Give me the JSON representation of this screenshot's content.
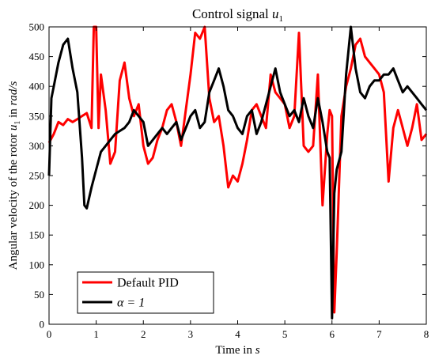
{
  "chart_data": {
    "type": "line",
    "title_main": "Control signal ",
    "title_var": "u",
    "title_sub": "1",
    "xlabel_main": "Time in ",
    "xlabel_unit": "s",
    "ylabel_main": "Angular velocity of the rotor ",
    "ylabel_var": "u",
    "ylabel_sub": "1",
    "ylabel_mid": " in ",
    "ylabel_unit": "rad/s",
    "xlim": [
      0,
      8
    ],
    "ylim": [
      0,
      500
    ],
    "xticks": [
      "0",
      "1",
      "2",
      "3",
      "4",
      "5",
      "6",
      "7",
      "8"
    ],
    "yticks": [
      "0",
      "50",
      "100",
      "150",
      "200",
      "250",
      "300",
      "350",
      "400",
      "450",
      "500"
    ],
    "grid": false,
    "legend_position": "bottom-left",
    "series": [
      {
        "name": "Default PID",
        "color": "#ff0000",
        "x": [
          0.0,
          0.1,
          0.2,
          0.3,
          0.4,
          0.5,
          0.6,
          0.7,
          0.8,
          0.9,
          0.95,
          1.0,
          1.05,
          1.1,
          1.2,
          1.3,
          1.4,
          1.5,
          1.6,
          1.7,
          1.8,
          1.9,
          2.0,
          2.1,
          2.2,
          2.3,
          2.4,
          2.5,
          2.6,
          2.7,
          2.8,
          2.9,
          3.0,
          3.1,
          3.2,
          3.3,
          3.4,
          3.5,
          3.6,
          3.7,
          3.8,
          3.9,
          4.0,
          4.1,
          4.2,
          4.3,
          4.4,
          4.5,
          4.6,
          4.7,
          4.8,
          4.9,
          5.0,
          5.1,
          5.2,
          5.3,
          5.4,
          5.5,
          5.6,
          5.7,
          5.8,
          5.9,
          5.95,
          6.0,
          6.05,
          6.1,
          6.2,
          6.3,
          6.4,
          6.5,
          6.6,
          6.7,
          6.8,
          6.9,
          7.0,
          7.1,
          7.2,
          7.3,
          7.4,
          7.5,
          7.6,
          7.7,
          7.8,
          7.9,
          8.0
        ],
        "y": [
          305,
          320,
          340,
          335,
          345,
          340,
          345,
          350,
          355,
          330,
          500,
          500,
          330,
          420,
          360,
          270,
          290,
          410,
          440,
          380,
          350,
          370,
          300,
          270,
          280,
          310,
          330,
          360,
          370,
          340,
          300,
          360,
          420,
          490,
          480,
          500,
          380,
          340,
          350,
          300,
          230,
          250,
          240,
          270,
          310,
          360,
          370,
          350,
          330,
          420,
          390,
          380,
          370,
          330,
          350,
          490,
          300,
          290,
          300,
          420,
          200,
          320,
          360,
          350,
          20,
          120,
          350,
          400,
          430,
          470,
          480,
          450,
          440,
          430,
          420,
          390,
          240,
          330,
          360,
          330,
          300,
          330,
          370,
          310,
          320
        ]
      },
      {
        "name": "α = 1",
        "color": "#000000",
        "x": [
          0.0,
          0.05,
          0.1,
          0.2,
          0.3,
          0.4,
          0.5,
          0.6,
          0.7,
          0.75,
          0.8,
          0.9,
          1.0,
          1.1,
          1.2,
          1.3,
          1.4,
          1.5,
          1.6,
          1.7,
          1.8,
          1.9,
          2.0,
          2.1,
          2.2,
          2.3,
          2.4,
          2.5,
          2.6,
          2.7,
          2.8,
          2.9,
          3.0,
          3.1,
          3.2,
          3.3,
          3.4,
          3.5,
          3.6,
          3.7,
          3.8,
          3.9,
          4.0,
          4.1,
          4.2,
          4.3,
          4.4,
          4.5,
          4.6,
          4.7,
          4.8,
          4.9,
          5.0,
          5.1,
          5.2,
          5.3,
          5.4,
          5.5,
          5.6,
          5.7,
          5.8,
          5.9,
          5.95,
          6.0,
          6.05,
          6.1,
          6.2,
          6.3,
          6.4,
          6.5,
          6.6,
          6.7,
          6.8,
          6.9,
          7.0,
          7.1,
          7.2,
          7.3,
          7.4,
          7.5,
          7.6,
          7.7,
          7.8,
          7.9,
          8.0
        ],
        "y": [
          250,
          380,
          400,
          440,
          470,
          480,
          430,
          390,
          280,
          200,
          195,
          230,
          260,
          290,
          300,
          310,
          320,
          325,
          330,
          340,
          360,
          350,
          340,
          300,
          310,
          320,
          330,
          320,
          330,
          340,
          310,
          330,
          350,
          360,
          330,
          340,
          390,
          410,
          430,
          400,
          360,
          350,
          330,
          320,
          350,
          360,
          320,
          340,
          370,
          400,
          430,
          390,
          370,
          350,
          360,
          340,
          380,
          350,
          330,
          380,
          340,
          290,
          280,
          10,
          220,
          260,
          290,
          420,
          500,
          430,
          390,
          380,
          400,
          410,
          410,
          420,
          420,
          430,
          410,
          390,
          400,
          390,
          380,
          370,
          360
        ]
      }
    ]
  }
}
